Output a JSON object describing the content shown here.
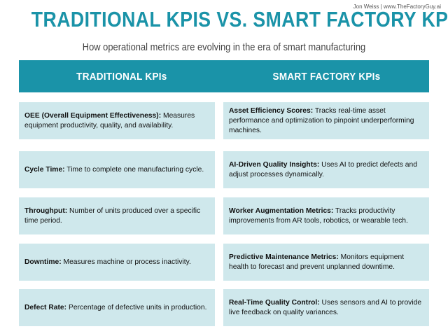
{
  "credit": "Jon Weiss | www.TheFactoryGuy.ai",
  "title": "TRADITIONAL KPIS VS. SMART FACTORY KPIS",
  "subtitle": "How operational metrics are evolving in the era of smart manufacturing",
  "colors": {
    "accent": "#1a93a8",
    "card_bg": "#cfe8ec",
    "text": "#111111"
  },
  "traditional": {
    "header": "TRADITIONAL KPIs",
    "items": [
      {
        "term": "OEE (Overall Equipment Effectiveness):",
        "desc": " Measures equipment productivity, quality, and availability."
      },
      {
        "term": "Cycle Time:",
        "desc": " Time to complete one manufacturing cycle."
      },
      {
        "term": "Throughput:",
        "desc": " Number of units produced over a specific time period."
      },
      {
        "term": "Downtime:",
        "desc": " Measures machine or process inactivity."
      },
      {
        "term": "Defect Rate:",
        "desc": " Percentage of defective units in production."
      }
    ]
  },
  "smart": {
    "header": "SMART FACTORY KPIs",
    "items": [
      {
        "term": "Asset Efficiency Scores:",
        "desc": " Tracks real-time asset performance and optimization to pinpoint underperforming machines."
      },
      {
        "term": "AI-Driven Quality Insights:",
        "desc": " Uses AI to predict defects and adjust processes dynamically."
      },
      {
        "term": "Worker Augmentation Metrics:",
        "desc": " Tracks productivity improvements from AR tools, robotics, or wearable tech."
      },
      {
        "term": "Predictive Maintenance Metrics:",
        "desc": " Monitors equipment health to forecast and prevent unplanned downtime."
      },
      {
        "term": "Real-Time Quality Control:",
        "desc": " Uses sensors and AI to provide live feedback on quality variances."
      }
    ]
  }
}
